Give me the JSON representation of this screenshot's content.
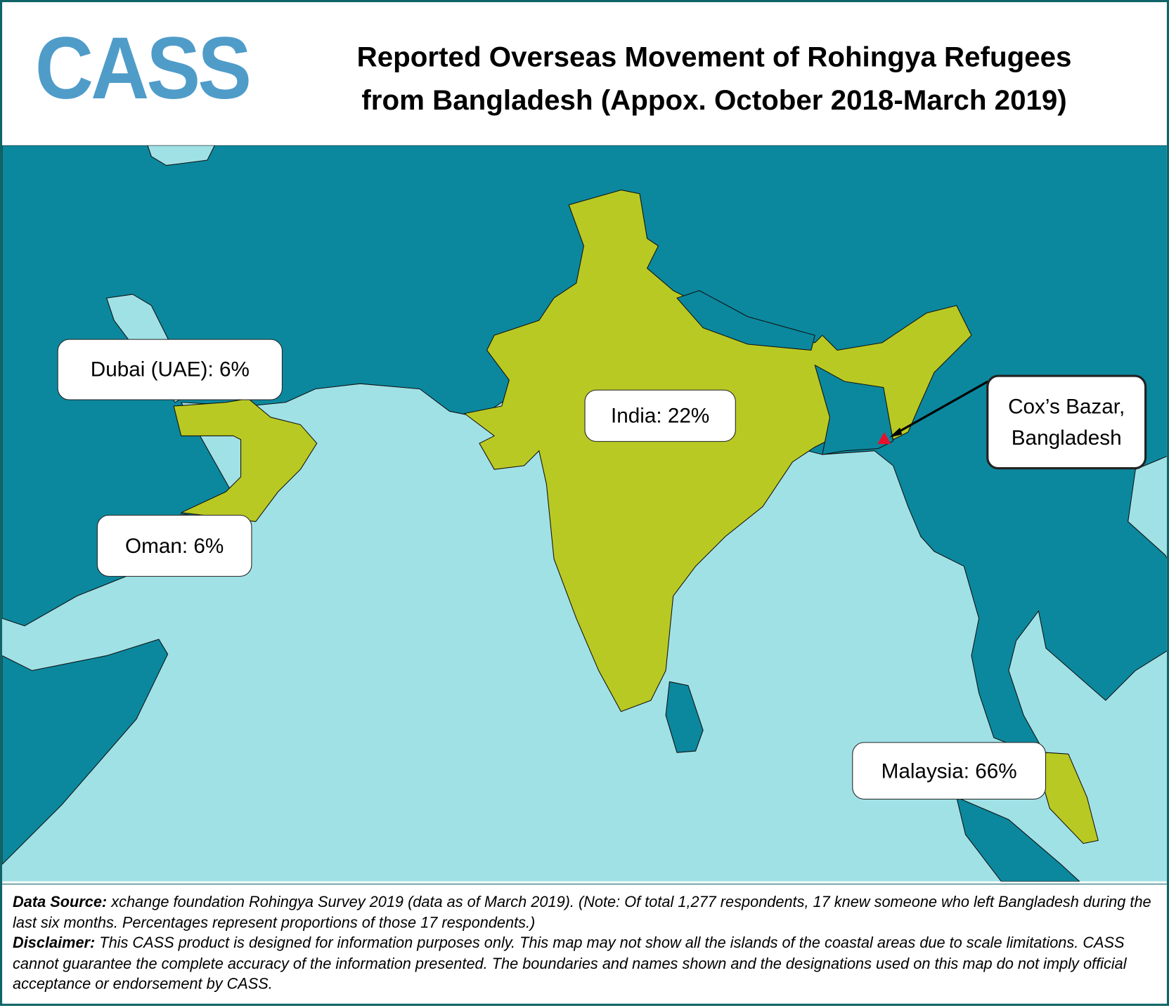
{
  "header": {
    "logo": "CASS",
    "title_line1": "Reported Overseas Movement of Rohingya Refugees",
    "title_line2": "from Bangladesh (Appox. October 2018-March 2019)"
  },
  "map": {
    "colors": {
      "sea": "#a0e1e6",
      "land": "#0b889e",
      "destination": "#b9c923",
      "origin_marker": "#e8112d"
    },
    "labels": {
      "dubai": "Dubai (UAE): 6%",
      "oman": "Oman: 6%",
      "india": "India: 22%",
      "malaysia": "Malaysia: 66%",
      "origin_line1": "Cox’s Bazar,",
      "origin_line2": "Bangladesh"
    },
    "destinations": [
      {
        "name": "Dubai (UAE)",
        "percent": 6
      },
      {
        "name": "Oman",
        "percent": 6
      },
      {
        "name": "India",
        "percent": 22
      },
      {
        "name": "Malaysia",
        "percent": 66
      }
    ]
  },
  "footer": {
    "source_label": "Data Source:",
    "source_text": " xchange foundation Rohingya Survey 2019 (data as of March 2019). (Note: Of total 1,277 respondents, 17 knew someone who left Bangladesh during the last six months. Percentages represent proportions of those 17 respondents.)",
    "disclaimer_label": "Disclaimer:",
    "disclaimer_text": " This CASS product is designed for information purposes only. This map may not show all the islands of the coastal areas due to scale limitations. CASS cannot guarantee the complete accuracy of the information presented. The boundaries and names shown and the designations used on this map do not imply official acceptance or endorsement by CASS."
  }
}
